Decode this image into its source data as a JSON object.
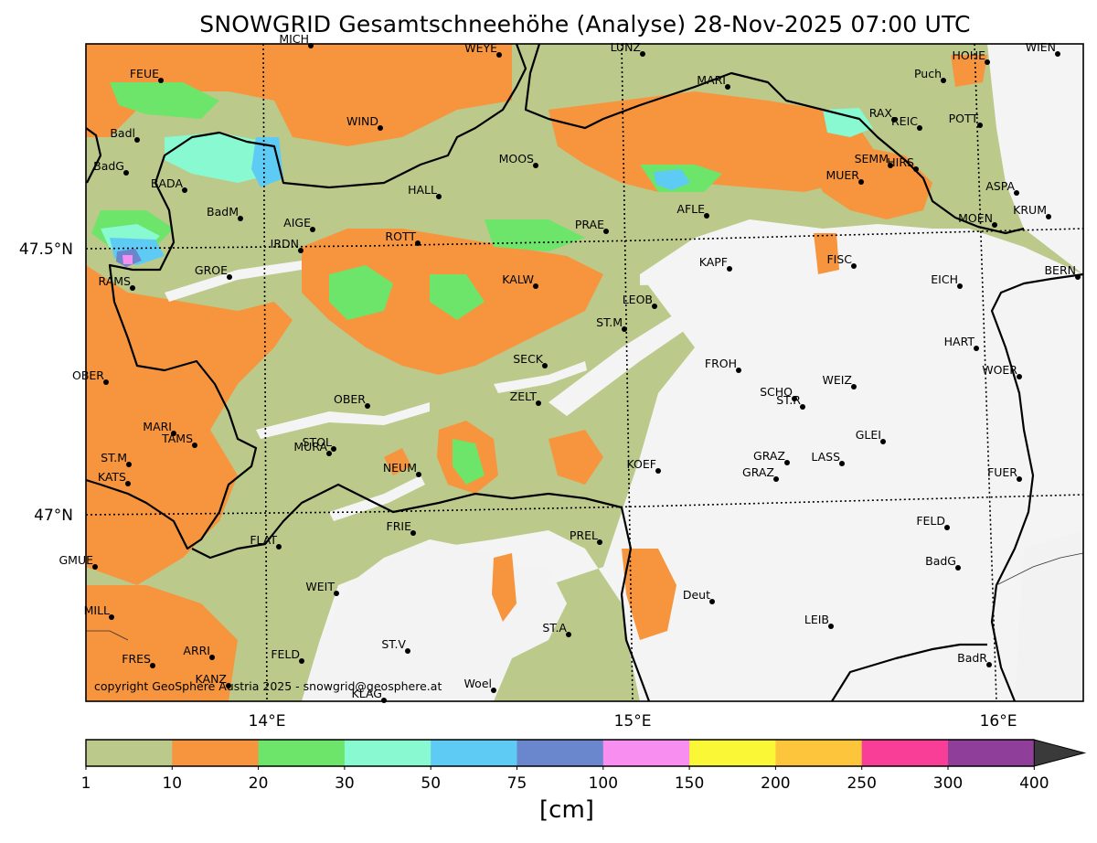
{
  "map": {
    "title": "SNOWGRID Gesamtschneehöhe (Analyse) 28-Nov-2025 07:00 UTC",
    "copyright": "copyright GeoSphere Austria 2025 - snowgrid@geosphere.at",
    "lat_labels": [
      "47.5°N",
      "47°N"
    ],
    "lon_labels": [
      "14°E",
      "15°E",
      "16°E"
    ],
    "colorbar": {
      "unit": "[cm]",
      "ticks": [
        "1",
        "10",
        "20",
        "30",
        "50",
        "75",
        "100",
        "150",
        "200",
        "250",
        "300",
        "400"
      ],
      "colors": [
        "#bbc98a",
        "#f7953f",
        "#6ce56a",
        "#89f9d1",
        "#5ecbf5",
        "#6a86cc",
        "#f98ef1",
        "#f9f736",
        "#fcc53c",
        "#f93e97",
        "#8f3e9a"
      ],
      "extend_color": "#3a3a3a"
    },
    "stations": [
      "MICH",
      "WEYE",
      "LUNZ",
      "HOHE",
      "WIEN",
      "FEUE",
      "MARI",
      "Puch",
      "Badl",
      "WIND",
      "RAX",
      "REIC",
      "POTT",
      "BadG",
      "MOOS",
      "SEMM",
      "HIRS",
      "MUER",
      "BADA",
      "HALL",
      "ASPA",
      "BadM",
      "AIGE",
      "AFLE",
      "PRAE",
      "KRUM",
      "MOEN",
      "ROTT",
      "IRDN",
      "KAPF",
      "FISC",
      "GROE",
      "RAMS",
      "KALW",
      "EICH",
      "BERN",
      "LEOB",
      "ST.M",
      "HART",
      "SECK",
      "FROH",
      "OBER",
      "WEIZ",
      "WOER",
      "ZELT",
      "SCHO",
      "ST.R",
      "OBER",
      "MARI",
      "TAMS",
      "GLEI",
      "STOL",
      "MURA",
      "GRAZ",
      "LASS",
      "ST.M",
      "KATS",
      "NEUM",
      "KOEF",
      "GRAZ",
      "FUER",
      "FELD",
      "FRIE",
      "PREL",
      "FLAT",
      "GMUE",
      "BadG",
      "WEIT",
      "Deut",
      "MILL",
      "LEIB",
      "ST.A",
      "ARRI",
      "ST.V",
      "FELD",
      "FRES",
      "BadR",
      "KANZ",
      "KLAG",
      "Woel"
    ]
  }
}
